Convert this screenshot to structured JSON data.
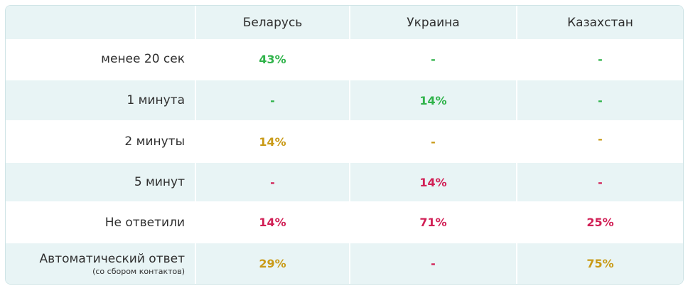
{
  "header": {
    "columns": [
      "Беларусь",
      "Украина",
      "Казахстан"
    ]
  },
  "rows": [
    {
      "label": "менее 20 сек",
      "values": [
        "43%",
        "-",
        "-"
      ]
    },
    {
      "label": "1 минута",
      "values": [
        "-",
        "14%",
        "-"
      ]
    },
    {
      "label": "2 минуты",
      "values": [
        "14%",
        "-",
        "-"
      ]
    },
    {
      "label": "5 минут",
      "values": [
        "-",
        "14%",
        "-"
      ]
    },
    {
      "label": "Не ответили",
      "values": [
        "14%",
        "71%",
        "25%"
      ]
    },
    {
      "label": "Автоматический ответ",
      "sublabel": "(со сбором контактов)",
      "values": [
        "29%",
        "-",
        "75%"
      ]
    }
  ],
  "colors": {
    "green": "#2fb34a",
    "gold": "#c99a17",
    "red": "#d11f55",
    "row_shade": "#e8f4f5"
  }
}
